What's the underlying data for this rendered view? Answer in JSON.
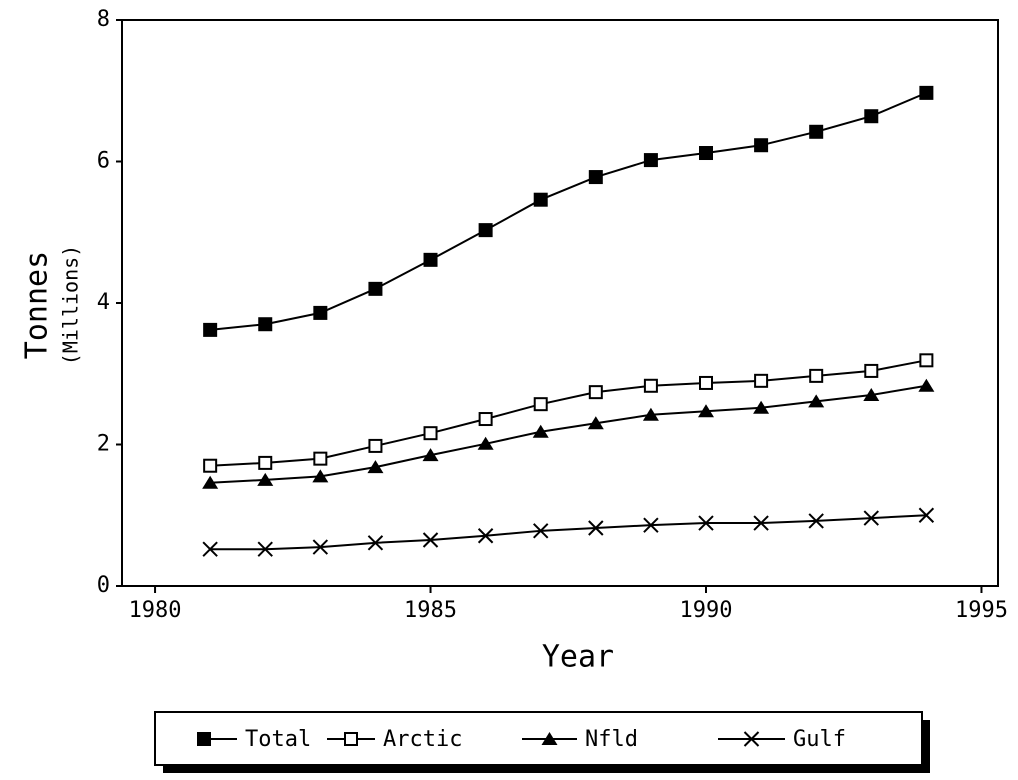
{
  "chart_data": {
    "type": "line",
    "x_label": "Year",
    "y_label": "Tonnes",
    "y_sublabel": "(Millions)",
    "x": [
      1981,
      1982,
      1983,
      1984,
      1985,
      1986,
      1987,
      1988,
      1989,
      1990,
      1991,
      1992,
      1993,
      1994
    ],
    "series": [
      {
        "name": "Total",
        "color": "#000000",
        "marker": "square-filled",
        "values": [
          3.62,
          3.7,
          3.86,
          4.2,
          4.61,
          5.03,
          5.46,
          5.78,
          6.02,
          6.12,
          6.23,
          6.42,
          6.64,
          6.97
        ]
      },
      {
        "name": "Arctic",
        "color": "#000000",
        "marker": "square-open",
        "values": [
          1.7,
          1.74,
          1.8,
          1.98,
          2.16,
          2.36,
          2.57,
          2.74,
          2.83,
          2.87,
          2.9,
          2.97,
          3.04,
          3.19
        ]
      },
      {
        "name": "Nfld",
        "color": "#000000",
        "marker": "triangle-filled",
        "values": [
          1.46,
          1.5,
          1.55,
          1.68,
          1.85,
          2.01,
          2.18,
          2.3,
          2.42,
          2.47,
          2.52,
          2.61,
          2.7,
          2.83
        ]
      },
      {
        "name": "Gulf",
        "color": "#000000",
        "marker": "cross",
        "values": [
          0.52,
          0.52,
          0.55,
          0.61,
          0.65,
          0.71,
          0.78,
          0.82,
          0.86,
          0.89,
          0.89,
          0.92,
          0.96,
          1.0
        ]
      }
    ],
    "xlim": [
      1979.4,
      1995.3
    ],
    "xticks": [
      1980,
      1985,
      1990,
      1995
    ],
    "ylim": [
      0,
      8
    ],
    "yticks": [
      0,
      2,
      4,
      6,
      8
    ],
    "grid": false,
    "legend": "bottom"
  }
}
